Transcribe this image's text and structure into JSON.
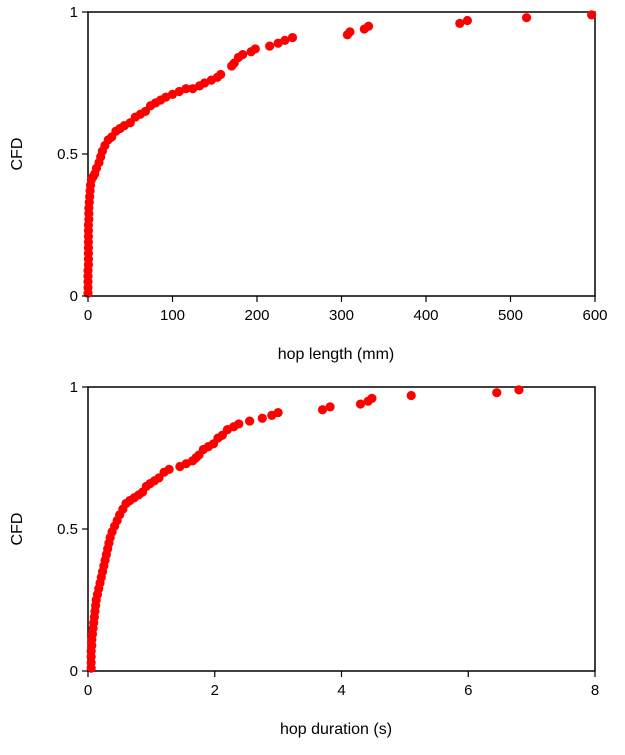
{
  "chart_data": [
    {
      "type": "scatter",
      "xlabel": "hop length (mm)",
      "ylabel": "CFD",
      "xlim": [
        0,
        600
      ],
      "ylim": [
        0,
        1
      ],
      "x_ticks": [
        "0",
        "100",
        "200",
        "300",
        "400",
        "500",
        "600"
      ],
      "y_ticks": [
        "0",
        "0.5",
        "1"
      ],
      "grid": false,
      "marker_color": "#ff0000",
      "series": [
        {
          "points": [
            [
              0,
              0.01
            ],
            [
              0,
              0.03
            ],
            [
              0,
              0.05
            ],
            [
              0,
              0.07
            ],
            [
              0,
              0.09
            ],
            [
              0.5,
              0.11
            ],
            [
              0.5,
              0.13
            ],
            [
              0.5,
              0.15
            ],
            [
              0.5,
              0.17
            ],
            [
              0.5,
              0.19
            ],
            [
              0.5,
              0.21
            ],
            [
              0.5,
              0.23
            ],
            [
              0.5,
              0.25
            ],
            [
              1,
              0.27
            ],
            [
              1,
              0.29
            ],
            [
              1,
              0.31
            ],
            [
              1.5,
              0.33
            ],
            [
              2,
              0.35
            ],
            [
              2.5,
              0.37
            ],
            [
              3,
              0.39
            ],
            [
              4,
              0.41
            ],
            [
              6,
              0.42
            ],
            [
              8,
              0.43
            ],
            [
              10,
              0.45
            ],
            [
              13,
              0.47
            ],
            [
              15,
              0.49
            ],
            [
              17,
              0.51
            ],
            [
              20,
              0.53
            ],
            [
              24,
              0.55
            ],
            [
              28,
              0.56
            ],
            [
              33,
              0.58
            ],
            [
              38,
              0.59
            ],
            [
              43,
              0.6
            ],
            [
              50,
              0.61
            ],
            [
              56,
              0.63
            ],
            [
              62,
              0.64
            ],
            [
              68,
              0.65
            ],
            [
              74,
              0.67
            ],
            [
              80,
              0.68
            ],
            [
              86,
              0.69
            ],
            [
              92,
              0.7
            ],
            [
              100,
              0.71
            ],
            [
              108,
              0.72
            ],
            [
              116,
              0.73
            ],
            [
              124,
              0.73
            ],
            [
              132,
              0.74
            ],
            [
              138,
              0.75
            ],
            [
              146,
              0.76
            ],
            [
              153,
              0.77
            ],
            [
              157,
              0.78
            ],
            [
              170,
              0.81
            ],
            [
              173,
              0.82
            ],
            [
              178,
              0.84
            ],
            [
              183,
              0.85
            ],
            [
              193,
              0.86
            ],
            [
              198,
              0.87
            ],
            [
              215,
              0.88
            ],
            [
              225,
              0.89
            ],
            [
              233,
              0.9
            ],
            [
              242,
              0.91
            ],
            [
              307,
              0.92
            ],
            [
              310,
              0.93
            ],
            [
              327,
              0.94
            ],
            [
              332,
              0.95
            ],
            [
              440,
              0.96
            ],
            [
              449,
              0.97
            ],
            [
              519,
              0.98
            ],
            [
              596,
              0.99
            ]
          ]
        }
      ]
    },
    {
      "type": "scatter",
      "xlabel": "hop duration (s)",
      "ylabel": "CFD",
      "xlim": [
        0,
        8
      ],
      "ylim": [
        0,
        1
      ],
      "x_ticks": [
        "0",
        "2",
        "4",
        "6",
        "8"
      ],
      "y_ticks": [
        "0",
        "0.5",
        "1"
      ],
      "grid": false,
      "marker_color": "#ff0000",
      "series": [
        {
          "points": [
            [
              0.05,
              0.01
            ],
            [
              0.05,
              0.03
            ],
            [
              0.05,
              0.05
            ],
            [
              0.05,
              0.07
            ],
            [
              0.06,
              0.09
            ],
            [
              0.06,
              0.11
            ],
            [
              0.07,
              0.13
            ],
            [
              0.08,
              0.15
            ],
            [
              0.09,
              0.17
            ],
            [
              0.1,
              0.19
            ],
            [
              0.11,
              0.21
            ],
            [
              0.12,
              0.23
            ],
            [
              0.13,
              0.25
            ],
            [
              0.15,
              0.27
            ],
            [
              0.17,
              0.29
            ],
            [
              0.19,
              0.31
            ],
            [
              0.21,
              0.33
            ],
            [
              0.23,
              0.35
            ],
            [
              0.25,
              0.37
            ],
            [
              0.27,
              0.39
            ],
            [
              0.29,
              0.41
            ],
            [
              0.31,
              0.43
            ],
            [
              0.33,
              0.45
            ],
            [
              0.35,
              0.47
            ],
            [
              0.38,
              0.49
            ],
            [
              0.42,
              0.51
            ],
            [
              0.46,
              0.53
            ],
            [
              0.5,
              0.55
            ],
            [
              0.55,
              0.57
            ],
            [
              0.6,
              0.59
            ],
            [
              0.66,
              0.6
            ],
            [
              0.73,
              0.61
            ],
            [
              0.8,
              0.62
            ],
            [
              0.86,
              0.63
            ],
            [
              0.92,
              0.65
            ],
            [
              0.98,
              0.66
            ],
            [
              1.05,
              0.67
            ],
            [
              1.12,
              0.68
            ],
            [
              1.2,
              0.7
            ],
            [
              1.28,
              0.71
            ],
            [
              1.45,
              0.72
            ],
            [
              1.55,
              0.73
            ],
            [
              1.65,
              0.74
            ],
            [
              1.7,
              0.75
            ],
            [
              1.75,
              0.76
            ],
            [
              1.82,
              0.78
            ],
            [
              1.9,
              0.79
            ],
            [
              1.98,
              0.8
            ],
            [
              2.05,
              0.82
            ],
            [
              2.12,
              0.83
            ],
            [
              2.2,
              0.85
            ],
            [
              2.3,
              0.86
            ],
            [
              2.38,
              0.87
            ],
            [
              2.55,
              0.88
            ],
            [
              2.75,
              0.89
            ],
            [
              2.9,
              0.9
            ],
            [
              3.0,
              0.91
            ],
            [
              3.7,
              0.92
            ],
            [
              3.82,
              0.93
            ],
            [
              4.3,
              0.94
            ],
            [
              4.42,
              0.95
            ],
            [
              4.48,
              0.96
            ],
            [
              5.1,
              0.97
            ],
            [
              6.45,
              0.98
            ],
            [
              6.8,
              0.99
            ]
          ]
        }
      ]
    }
  ]
}
